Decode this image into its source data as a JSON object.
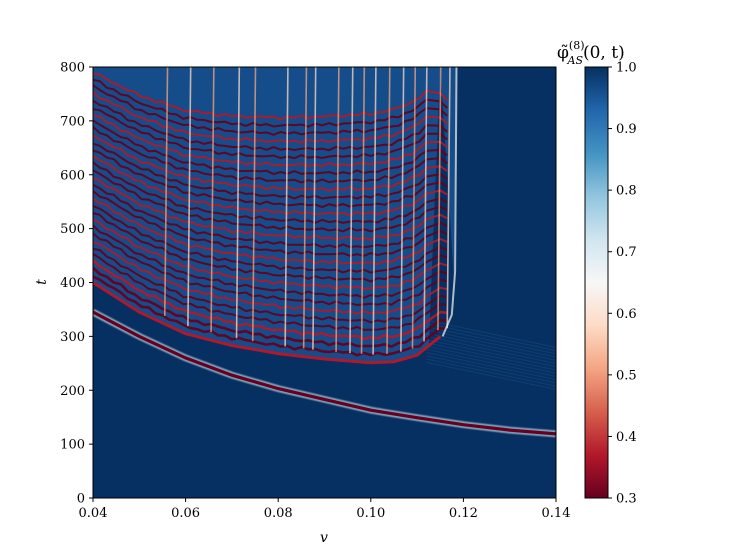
{
  "chart_data": {
    "type": "heatmap",
    "title": "",
    "xlabel": "v",
    "ylabel": "t",
    "xlim": [
      0.04,
      0.14
    ],
    "ylim": [
      0,
      800
    ],
    "x_ticks": [
      {
        "value": 0.04,
        "label": "0.04"
      },
      {
        "value": 0.06,
        "label": "0.06"
      },
      {
        "value": 0.08,
        "label": "0.08"
      },
      {
        "value": 0.1,
        "label": "0.10"
      },
      {
        "value": 0.12,
        "label": "0.12"
      },
      {
        "value": 0.14,
        "label": "0.14"
      }
    ],
    "y_ticks": [
      {
        "value": 0,
        "label": "0"
      },
      {
        "value": 100,
        "label": "100"
      },
      {
        "value": 200,
        "label": "200"
      },
      {
        "value": 300,
        "label": "300"
      },
      {
        "value": 400,
        "label": "400"
      },
      {
        "value": 500,
        "label": "500"
      },
      {
        "value": 600,
        "label": "600"
      },
      {
        "value": 700,
        "label": "700"
      },
      {
        "value": 800,
        "label": "800"
      }
    ],
    "colorbar": {
      "title_main": "φ̃",
      "title_sup": "(8)",
      "title_sub": "AS",
      "title_args": "(0, t)",
      "colormap": "RdBu",
      "range": [
        0.3,
        1.0
      ],
      "ticks": [
        {
          "value": 0.3,
          "label": "0.3"
        },
        {
          "value": 0.4,
          "label": "0.4"
        },
        {
          "value": 0.5,
          "label": "0.5"
        },
        {
          "value": 0.6,
          "label": "0.6"
        },
        {
          "value": 0.7,
          "label": "0.7"
        },
        {
          "value": 0.8,
          "label": "0.8"
        },
        {
          "value": 0.9,
          "label": "0.9"
        },
        {
          "value": 1.0,
          "label": "1.0"
        }
      ]
    },
    "features": {
      "first_bounce_curve": [
        [
          0.04,
          345
        ],
        [
          0.05,
          300
        ],
        [
          0.06,
          260
        ],
        [
          0.07,
          228
        ],
        [
          0.08,
          203
        ],
        [
          0.09,
          183
        ],
        [
          0.1,
          163
        ],
        [
          0.11,
          149
        ],
        [
          0.12,
          136
        ],
        [
          0.13,
          126
        ],
        [
          0.14,
          119
        ]
      ],
      "second_bounce_curve": [
        [
          0.04,
          400
        ],
        [
          0.05,
          345
        ],
        [
          0.06,
          305
        ],
        [
          0.07,
          283
        ],
        [
          0.08,
          268
        ],
        [
          0.09,
          258
        ],
        [
          0.1,
          251
        ],
        [
          0.105,
          253
        ],
        [
          0.11,
          265
        ],
        [
          0.115,
          300
        ]
      ],
      "chaotic_boundary_v": 0.1185,
      "background_value": 1.0,
      "stripe_value": 0.3
    }
  }
}
